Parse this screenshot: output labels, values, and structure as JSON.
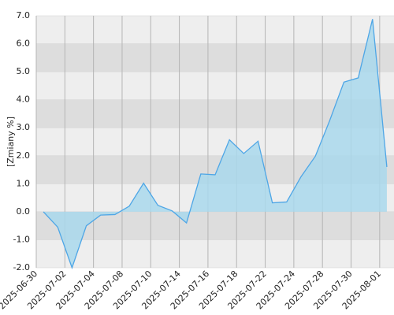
{
  "chart_data": {
    "type": "area",
    "y_label": "[Zmiany %]",
    "categories": [
      "2025-06-30",
      null,
      "2025-07-02",
      null,
      "2025-07-04",
      null,
      "2025-07-08",
      null,
      "2025-07-10",
      null,
      "2025-07-14",
      null,
      "2025-07-16",
      null,
      "2025-07-18",
      null,
      "2025-07-22",
      null,
      "2025-07-24",
      null,
      "2025-07-28",
      null,
      "2025-07-30",
      null,
      "2025-08-01"
    ],
    "values": [
      0.0,
      -0.55,
      -2.0,
      -0.5,
      -0.12,
      -0.1,
      0.2,
      1.02,
      0.23,
      0.03,
      -0.4,
      1.35,
      1.32,
      2.57,
      2.08,
      2.52,
      0.32,
      0.35,
      1.25,
      1.98,
      3.25,
      4.63,
      4.78,
      6.88,
      1.6
    ],
    "color": "#4ea6e6",
    "fill_color": "#a9d8ec",
    "ylim": [
      -2,
      7
    ],
    "yticks": [
      {
        "value": -2,
        "label": "-2.0"
      },
      {
        "value": -1,
        "label": "-1.0"
      },
      {
        "value": 0,
        "label": "0.0"
      },
      {
        "value": 1,
        "label": "1.0"
      },
      {
        "value": 2,
        "label": "2.0"
      },
      {
        "value": 3,
        "label": "3.0"
      },
      {
        "value": 4,
        "label": "4.0"
      },
      {
        "value": 5,
        "label": "5.0"
      },
      {
        "value": 6,
        "label": "6.0"
      },
      {
        "value": 7,
        "label": "7.0"
      }
    ],
    "grid": true
  }
}
